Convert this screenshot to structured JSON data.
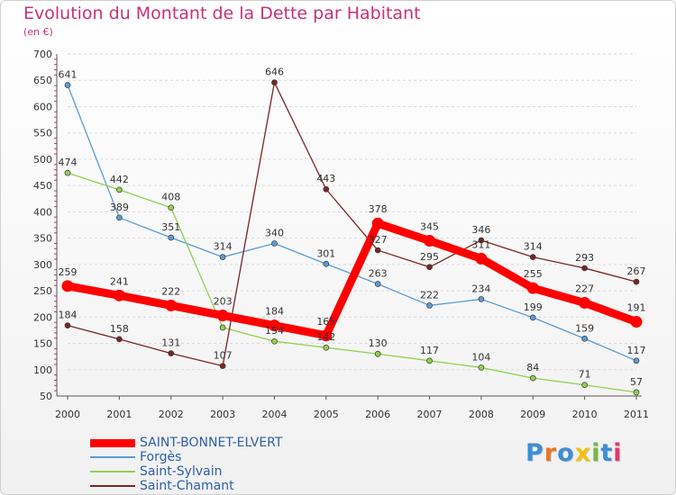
{
  "chart_data": {
    "type": "line",
    "title": "Evolution du Montant de la Dette par Habitant",
    "subtitle": "(en €)",
    "categories": [
      "2000",
      "2001",
      "2002",
      "2003",
      "2004",
      "2005",
      "2006",
      "2007",
      "2008",
      "2009",
      "2010",
      "2011"
    ],
    "yticks": [
      50,
      100,
      150,
      200,
      250,
      300,
      350,
      400,
      450,
      500,
      550,
      600,
      650,
      700
    ],
    "ylim": [
      50,
      700
    ],
    "grid": "horizontal-dashed",
    "legend_position": "bottom-left",
    "series": [
      {
        "name": "SAINT-BONNET-ELVERT",
        "color": "#ff0000",
        "emphasis": true,
        "values": [
          259,
          241,
          222,
          203,
          184,
          165,
          378,
          345,
          311,
          255,
          227,
          191
        ],
        "labels": [
          "259",
          "241",
          "222",
          "203",
          "184",
          "165",
          "378",
          "345",
          "311",
          "255",
          "227",
          "191"
        ]
      },
      {
        "name": "Forgès",
        "color": "#5b9bd5",
        "emphasis": false,
        "values": [
          641,
          389,
          351,
          314,
          340,
          301,
          263,
          222,
          234,
          199,
          159,
          117
        ],
        "labels": [
          "641",
          "389",
          "351",
          "314",
          "340",
          "301",
          "263",
          "222",
          "234",
          "199",
          "159",
          "117"
        ]
      },
      {
        "name": "Saint-Sylvain",
        "color": "#92d050",
        "emphasis": false,
        "values": [
          474,
          442,
          408,
          180,
          154,
          142,
          130,
          117,
          104,
          84,
          71,
          57
        ],
        "labels": [
          "474",
          "442",
          "408",
          "",
          "154",
          "142",
          "130",
          "117",
          "104",
          "84",
          "71",
          "57"
        ]
      },
      {
        "name": "Saint-Chamant",
        "color": "#7b2424",
        "emphasis": false,
        "values": [
          184,
          158,
          131,
          107,
          646,
          443,
          327,
          295,
          346,
          314,
          293,
          267
        ],
        "labels": [
          "184",
          "158",
          "131",
          "107",
          "646",
          "443",
          "327",
          "295",
          "346",
          "314",
          "293",
          "267"
        ]
      }
    ]
  },
  "logo": {
    "text": "Proxiti"
  }
}
